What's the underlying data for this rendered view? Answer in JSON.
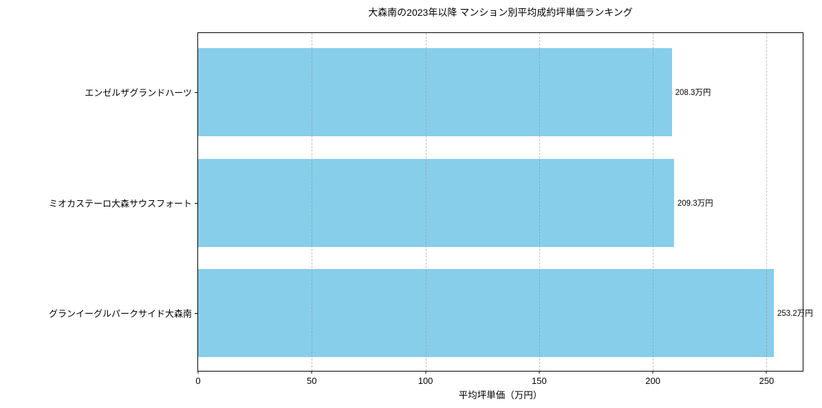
{
  "chart_data": {
    "type": "bar",
    "orientation": "horizontal",
    "title": "大森南の2023年以降 マンション別平均成約坪単価ランキング",
    "xlabel": "平均坪単価（万円）",
    "categories": [
      "エンゼルザグランドハーツ",
      "ミオカステーロ大森サウスフォート",
      "グランイーグルパークサイド大森南"
    ],
    "values": [
      208.3,
      209.3,
      253.2
    ],
    "value_labels": [
      "208.3万円",
      "209.3万円",
      "253.2万円"
    ],
    "xticks": [
      0,
      50,
      100,
      150,
      200,
      250
    ],
    "xlim": [
      0,
      265.9
    ],
    "bar_color": "#87CEEB",
    "grid": "dashed vertical gridlines over bars",
    "legend": "none"
  }
}
